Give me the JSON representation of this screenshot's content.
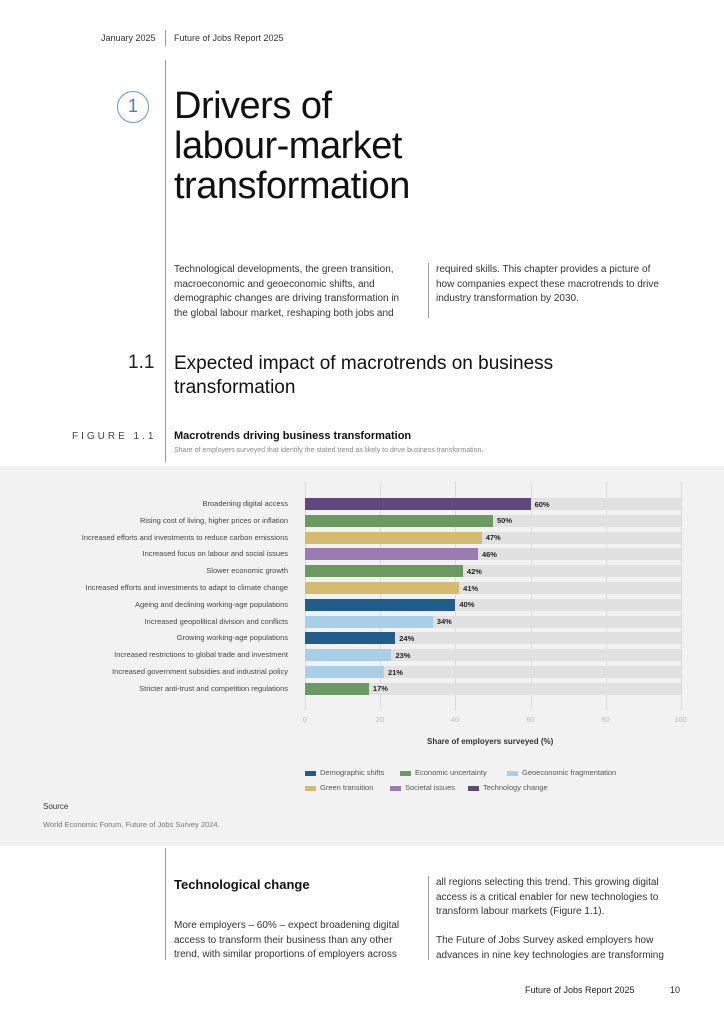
{
  "header": {
    "date": "January 2025",
    "report": "Future of Jobs Report 2025"
  },
  "chapter": {
    "number": "1",
    "title_lines": [
      "Drivers of",
      "labour-market",
      "transformation"
    ]
  },
  "intro": {
    "col1_lines": [
      "Technological developments, the green transition,",
      "macroeconomic and geoeconomic shifts, and",
      "demographic changes are driving transformation in",
      "the global labour market, reshaping both jobs and"
    ],
    "col2_lines": [
      "required skills. This chapter provides a picture of",
      "how companies expect these macrotrends to drive",
      "industry transformation by 2030."
    ]
  },
  "section": {
    "number": "1.1",
    "title_lines": [
      "Expected impact of macrotrends on business",
      "transformation"
    ]
  },
  "figure": {
    "label": "FIGURE 1.1",
    "title": "Macrotrends driving business transformation",
    "subtitle": "Share of employers surveyed that identify the stated trend as likely to drive business transformation."
  },
  "colors": {
    "demographic": "#215d8b",
    "economic": "#6b9a61",
    "geoeconomic": "#a8cfe8",
    "green": "#d4bc6f",
    "societal": "#9a7bb2",
    "technology": "#5e4a7e"
  },
  "chart_data": {
    "type": "bar",
    "orientation": "horizontal",
    "xlabel": "Share of employers surveyed (%)",
    "xlim": [
      0,
      100
    ],
    "xticks": [
      "0",
      "20",
      "40",
      "60",
      "80",
      "100"
    ],
    "categories": [
      "Broadening digital access",
      "Rising cost of living, higher prices or inflation",
      "Increased efforts and investments to reduce carbon emissions",
      "Increased focus on labour and social issues",
      "Slower economic growth",
      "Increased efforts and investments to adapt to climate change",
      "Ageing and declining working-age populations",
      "Increased geopolitical division and conflicts",
      "Growing working-age populations",
      "Increased restrictions to global trade and investment",
      "Increased government subsidies and industrial policy",
      "Stricter anti-trust and competition regulations"
    ],
    "values": [
      60,
      50,
      47,
      46,
      42,
      41,
      40,
      34,
      24,
      23,
      21,
      17
    ],
    "value_labels": [
      "60%",
      "50%",
      "47%",
      "46%",
      "42%",
      "41%",
      "40%",
      "34%",
      "24%",
      "23%",
      "21%",
      "17%"
    ],
    "groups": [
      "technology",
      "economic",
      "green",
      "societal",
      "economic",
      "green",
      "demographic",
      "geoeconomic",
      "demographic",
      "geoeconomic",
      "geoeconomic",
      "economic"
    ],
    "legend": [
      {
        "key": "demographic",
        "name": "Demographic shifts"
      },
      {
        "key": "economic",
        "name": "Economic uncertainty"
      },
      {
        "key": "geoeconomic",
        "name": "Geoeconomic fragmentation"
      },
      {
        "key": "green",
        "name": "Green transition"
      },
      {
        "key": "societal",
        "name": "Societal issues"
      },
      {
        "key": "technology",
        "name": "Technology change"
      }
    ],
    "legend_placement": "bottom",
    "grid": true
  },
  "source": {
    "label": "Source",
    "text": "World Economic Forum, Future of Jobs Survey 2024."
  },
  "tech_section": {
    "heading": "Technological change",
    "col1_lines": [
      "More employers – 60% – expect broadening digital",
      "access to transform their business than any other",
      "trend, with similar proportions of employers across"
    ],
    "col2_lines": [
      "all regions selecting this trend. This growing digital",
      "access is a critical enabler for new technologies to",
      "transform labour markets (Figure 1.1).",
      "",
      "The Future of Jobs Survey asked employers how",
      "advances in nine key technologies are transforming"
    ]
  },
  "footer": {
    "report": "Future of Jobs Report 2025",
    "page": "10"
  }
}
